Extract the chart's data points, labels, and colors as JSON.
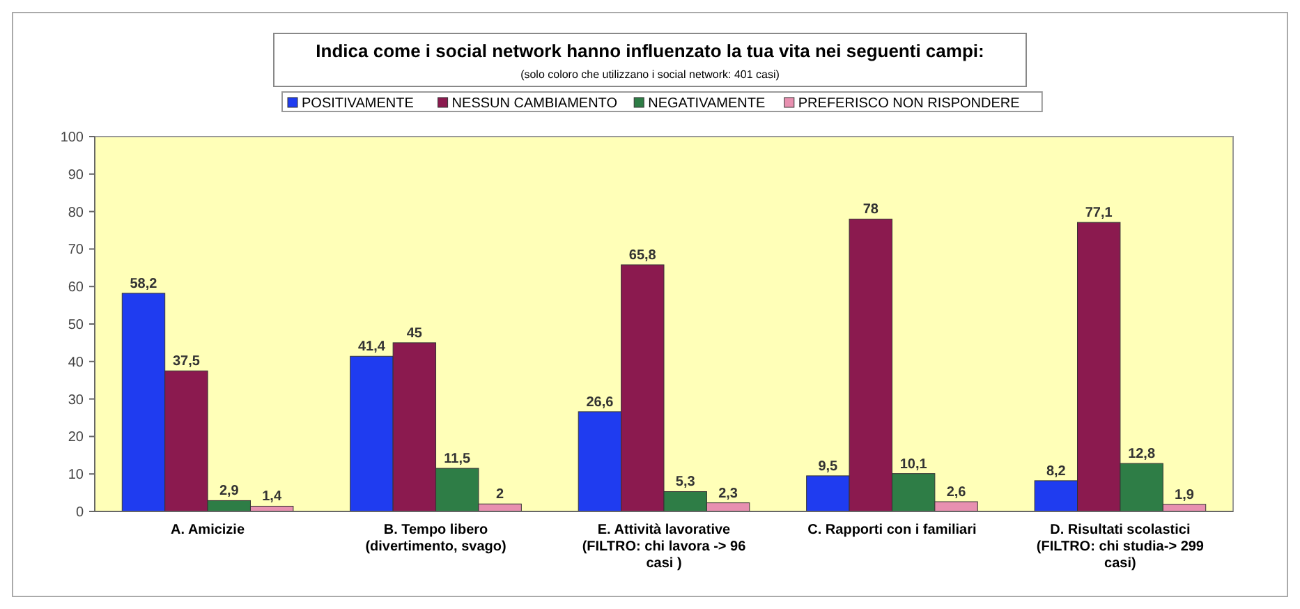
{
  "chart_data": {
    "type": "bar",
    "title": "Indica come i social network hanno influenzato la tua vita nei seguenti campi:",
    "subtitle": "(solo coloro che utilizzano i social network: 401 casi)",
    "categories": [
      "A. Amicizie",
      "B. Tempo libero\n(divertimento, svago)",
      "E. Attività lavorative\n(FILTRO: chi lavora -> 96\ncasi )",
      "C. Rapporti con i familiari",
      "D. Risultati scolastici\n(FILTRO: chi studia-> 299\ncasi)"
    ],
    "series": [
      {
        "name": "POSITIVAMENTE",
        "color": "#1f3cf0",
        "values": [
          58.2,
          41.4,
          26.6,
          9.5,
          8.2
        ],
        "value_labels": [
          "58,2",
          "41,4",
          "26,6",
          "9,5",
          "8,2"
        ]
      },
      {
        "name": "NESSUN CAMBIAMENTO",
        "color": "#8b1a4f",
        "values": [
          37.5,
          45,
          65.8,
          78,
          77.1
        ],
        "value_labels": [
          "37,5",
          "45",
          "65,8",
          "78",
          "77,1"
        ]
      },
      {
        "name": "NEGATIVAMENTE",
        "color": "#2e7d46",
        "values": [
          2.9,
          11.5,
          5.3,
          10.1,
          12.8
        ],
        "value_labels": [
          "2,9",
          "11,5",
          "5,3",
          "10,1",
          "12,8"
        ]
      },
      {
        "name": "PREFERISCO NON RISPONDERE",
        "color": "#e890b0",
        "values": [
          1.4,
          2,
          2.3,
          2.6,
          1.9
        ],
        "value_labels": [
          "1,4",
          "2",
          "2,3",
          "2,6",
          "1,9"
        ]
      }
    ],
    "ylim": [
      0,
      100
    ],
    "yticks": [
      0,
      10,
      20,
      30,
      40,
      50,
      60,
      70,
      80,
      90,
      100
    ],
    "legend": "top",
    "grid": false
  }
}
